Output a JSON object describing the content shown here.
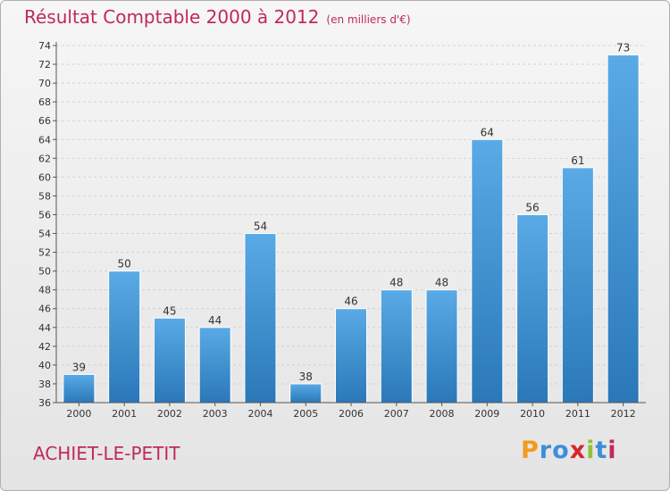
{
  "title": "Résultat Comptable 2000 à 2012",
  "subtitle": "(en milliers d'€)",
  "commune": "ACHIET-LE-PETIT",
  "logo": {
    "letters": [
      "P",
      "r",
      "o",
      "x",
      "i",
      "t",
      "i"
    ],
    "colors": [
      "#f39a1e",
      "#3a8fd9",
      "#3a8fd9",
      "#d9262e",
      "#8fc43a",
      "#3a8fd9",
      "#c0295a"
    ]
  },
  "colors": {
    "bar_top": "#5aaae6",
    "bar_bottom": "#2a78b8",
    "title": "#c0295a"
  },
  "chart_data": {
    "type": "bar",
    "categories": [
      "2000",
      "2001",
      "2002",
      "2003",
      "2004",
      "2005",
      "2006",
      "2007",
      "2008",
      "2009",
      "2010",
      "2011",
      "2012"
    ],
    "values": [
      39,
      50,
      45,
      44,
      54,
      38,
      46,
      48,
      48,
      64,
      56,
      61,
      73
    ],
    "ylim": [
      36,
      74
    ],
    "yticks": [
      36,
      38,
      40,
      42,
      44,
      46,
      48,
      50,
      52,
      54,
      56,
      58,
      60,
      62,
      64,
      66,
      68,
      70,
      72,
      74
    ],
    "grid": true
  }
}
